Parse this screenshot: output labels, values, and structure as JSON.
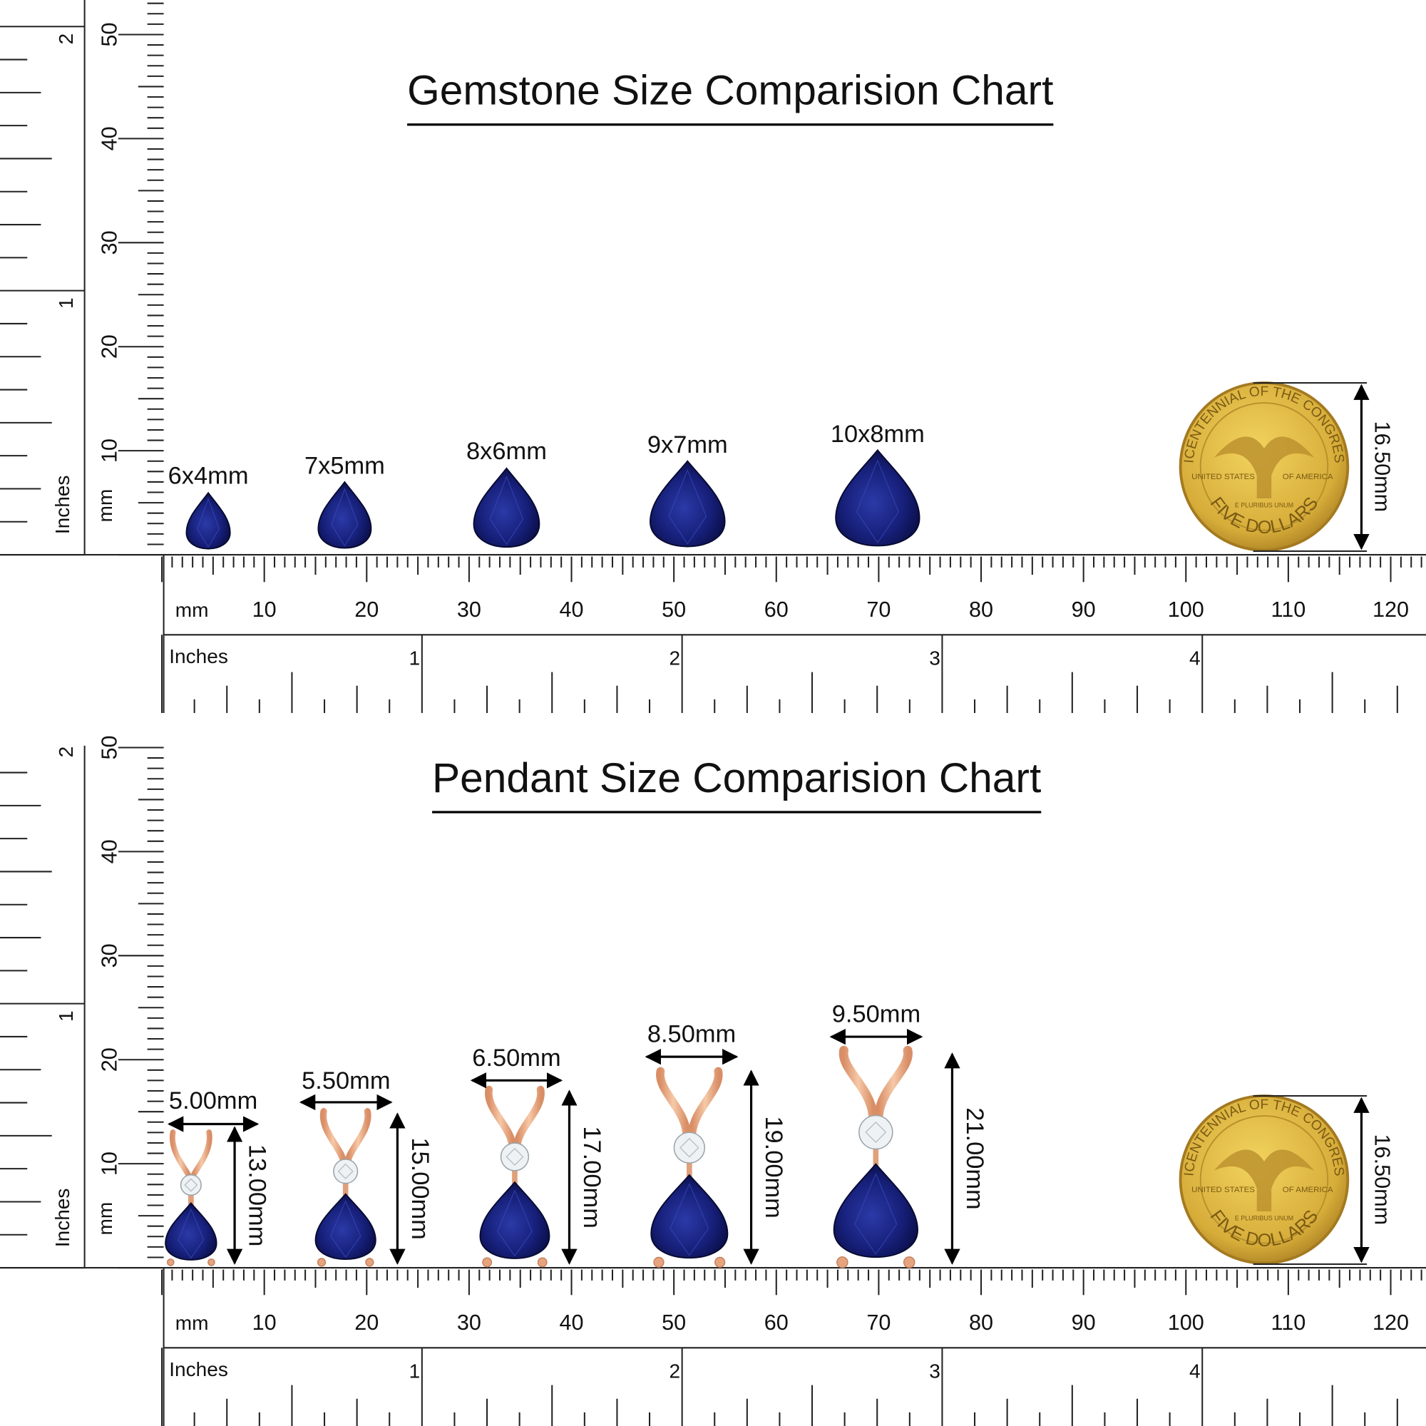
{
  "gemstone_chart": {
    "title": "Gemstone Size Comparision Chart",
    "sizes": [
      "6x4mm",
      "7x5mm",
      "8x6mm",
      "9x7mm",
      "10x8mm"
    ],
    "coin_size": "16.50mm"
  },
  "pendant_chart": {
    "title": "Pendant Size Comparision Chart",
    "widths": [
      "5.00mm",
      "5.50mm",
      "6.50mm",
      "8.50mm",
      "9.50mm"
    ],
    "heights": [
      "13.00mm",
      "15.00mm",
      "17.00mm",
      "19.00mm",
      "21.00mm"
    ],
    "coin_size": "16.50mm"
  },
  "ruler": {
    "mm_unit": "mm",
    "inch_unit": "Inches",
    "mm_labels": [
      10,
      20,
      30,
      40,
      50,
      60,
      70,
      80,
      90,
      100,
      110,
      120
    ],
    "inch_labels": [
      1,
      2,
      3,
      4
    ],
    "vertical_mm_labels": [
      10,
      20,
      30,
      40,
      50
    ],
    "vertical_inch_labels": [
      1,
      2
    ]
  },
  "coin": {
    "top_text": "BICENTENNIAL OF THE CONGRESS",
    "bottom_text": "FIVE DOLLARS",
    "left_text": "UNITED STATES",
    "right_text": "OF AMERICA",
    "motto": "E PLURIBUS UNUM"
  }
}
